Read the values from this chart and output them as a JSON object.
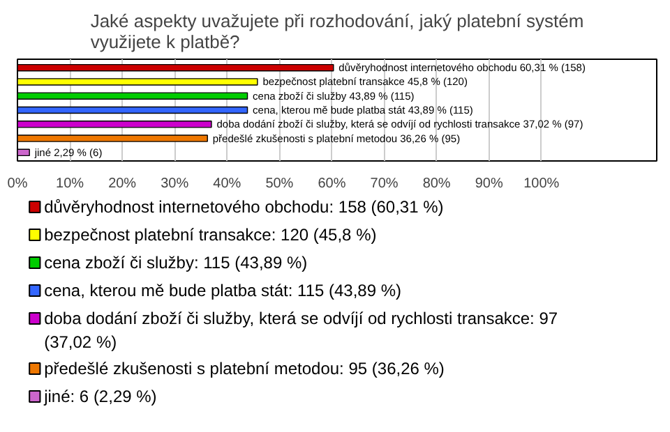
{
  "chart_data": {
    "type": "bar",
    "orientation": "horizontal",
    "title": "Jaké aspekty uvažujete při rozhodování, jaký platební systém využijete k platbě?",
    "categories": [
      null,
      null,
      null,
      null,
      null,
      null,
      null
    ],
    "series": [
      {
        "name": "důvěryhodnost internetového obchodu: 158 (60,31 %)",
        "color": "#cc0000",
        "values": [
          60.31,
          null,
          null,
          null,
          null,
          null,
          null
        ],
        "value_labels": [
          "důvěryhodnost internetového obchodu 60,31 % (158)",
          null,
          null,
          null,
          null,
          null,
          null
        ]
      },
      {
        "name": "bezpečnost platební transakce: 120 (45,8 %)",
        "color": "#ffff00",
        "values": [
          null,
          45.8,
          null,
          null,
          null,
          null,
          null
        ],
        "value_labels": [
          null,
          "bezpečnost platební transakce 45,8 % (120)",
          null,
          null,
          null,
          null,
          null
        ]
      },
      {
        "name": "cena zboží či služby: 115 (43,89 %)",
        "color": "#00cc00",
        "values": [
          null,
          null,
          43.89,
          null,
          null,
          null,
          null
        ],
        "value_labels": [
          null,
          null,
          "cena zboží či služby 43,89 % (115)",
          null,
          null,
          null,
          null
        ]
      },
      {
        "name": "cena, kterou mě bude platba stát: 115 (43,89 %)",
        "color": "#3366ff",
        "values": [
          null,
          null,
          null,
          43.89,
          null,
          null,
          null
        ],
        "value_labels": [
          null,
          null,
          null,
          "cena, kterou mě bude platba stát 43,89 % (115)",
          null,
          null,
          null
        ]
      },
      {
        "name": "doba dodání zboží či služby, která se odvíjí od rychlosti transakce: 97 (37,02 %)",
        "color": "#cc00cc",
        "values": [
          null,
          null,
          null,
          null,
          37.02,
          null,
          null
        ],
        "value_labels": [
          null,
          null,
          null,
          null,
          "doba dodání zboží či služby, která se odvíjí od rychlosti transakce 37,02 % (97)",
          null,
          null
        ]
      },
      {
        "name": "předešlé zkušenosti s platební metodou: 95 (36,26 %)",
        "color": "#ee7700",
        "values": [
          null,
          null,
          null,
          null,
          null,
          36.26,
          null
        ],
        "value_labels": [
          null,
          null,
          null,
          null,
          null,
          "předešlé zkušenosti s platební metodou 36,26 % (95)",
          null
        ]
      },
      {
        "name": "jiné: 6 (2,29 %)",
        "color": "#cc66cc",
        "values": [
          null,
          null,
          null,
          null,
          null,
          null,
          2.29
        ],
        "value_labels": [
          null,
          null,
          null,
          null,
          null,
          null,
          "jiné 2,29 % (6)"
        ]
      }
    ],
    "xlim": [
      0,
      122
    ],
    "xticks": [
      {
        "value": 0,
        "label": "0%"
      },
      {
        "value": 10,
        "label": "10%"
      },
      {
        "value": 20,
        "label": "20%"
      },
      {
        "value": 30,
        "label": "30%"
      },
      {
        "value": 40,
        "label": "40%"
      },
      {
        "value": 50,
        "label": "50%"
      },
      {
        "value": 60,
        "label": "60%"
      },
      {
        "value": 70,
        "label": "70%"
      },
      {
        "value": 80,
        "label": "80%"
      },
      {
        "value": 90,
        "label": "90%"
      },
      {
        "value": 100,
        "label": "100%"
      }
    ],
    "grid": "x",
    "legend": "bottom"
  }
}
